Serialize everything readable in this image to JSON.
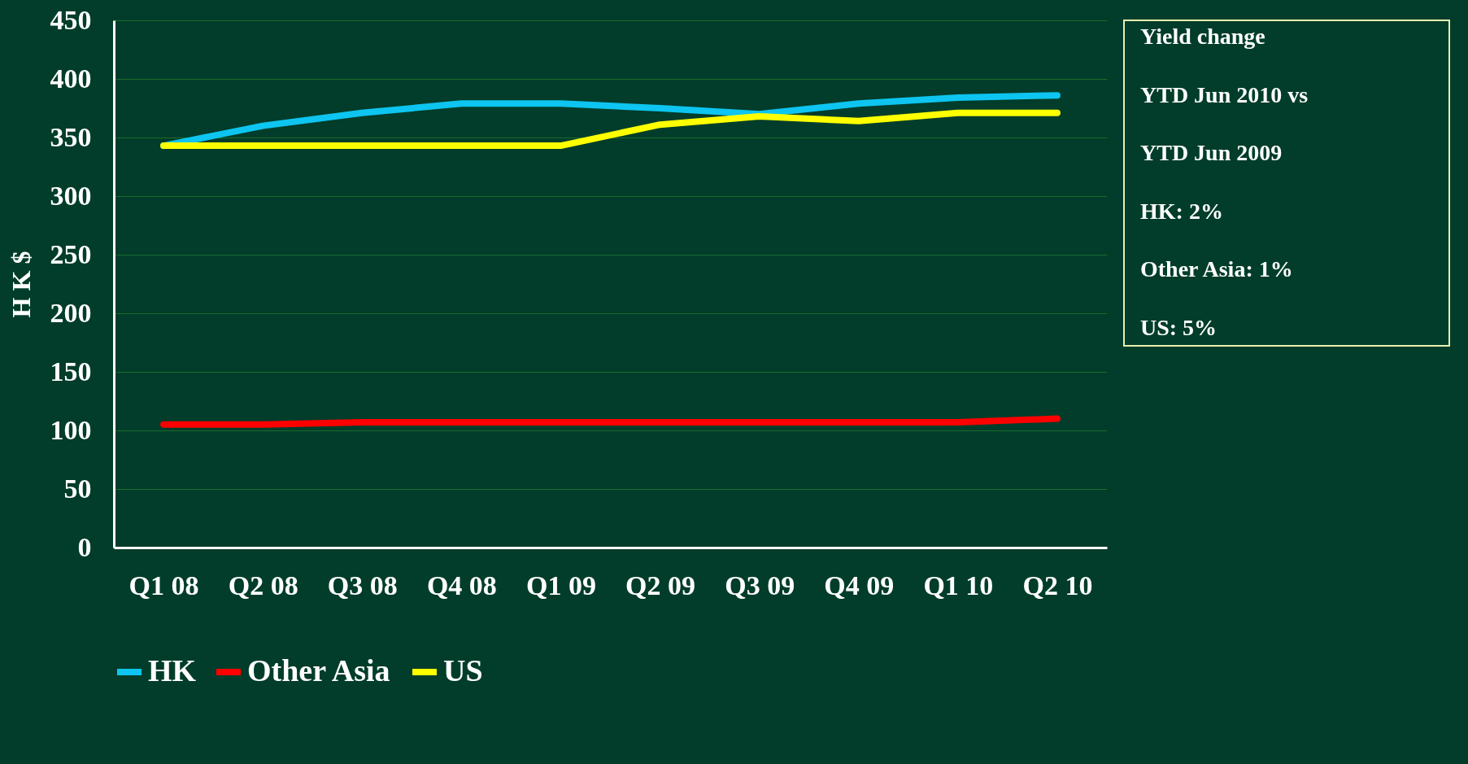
{
  "chart_data": {
    "type": "line",
    "ylabel": "H K $",
    "categories": [
      "Q1 08",
      "Q2 08",
      "Q3 08",
      "Q4 08",
      "Q1 09",
      "Q2 09",
      "Q3 09",
      "Q4 09",
      "Q1 10",
      "Q2 10"
    ],
    "series": [
      {
        "name": "HK",
        "color": "#0dc5f0",
        "values": [
          343,
          360,
          371,
          379,
          379,
          375,
          370,
          379,
          384,
          386
        ]
      },
      {
        "name": "Other Asia",
        "color": "#ff0000",
        "values": [
          105,
          105,
          107,
          107,
          107,
          107,
          107,
          107,
          107,
          110
        ]
      },
      {
        "name": "US",
        "color": "#ffff00",
        "values": [
          343,
          343,
          343,
          343,
          343,
          361,
          368,
          364,
          371,
          371
        ]
      }
    ],
    "ylim": [
      0,
      450
    ],
    "yticks": [
      0,
      50,
      100,
      150,
      200,
      250,
      300,
      350,
      400,
      450
    ],
    "grid": "y",
    "legend": "bottom",
    "marker": "none",
    "line_style": "solid",
    "annotations": [
      "Yield change",
      "YTD Jun 2010 vs",
      "YTD Jun 2009",
      "HK: 2%",
      "Other Asia: 1%",
      "US: 5%"
    ]
  }
}
